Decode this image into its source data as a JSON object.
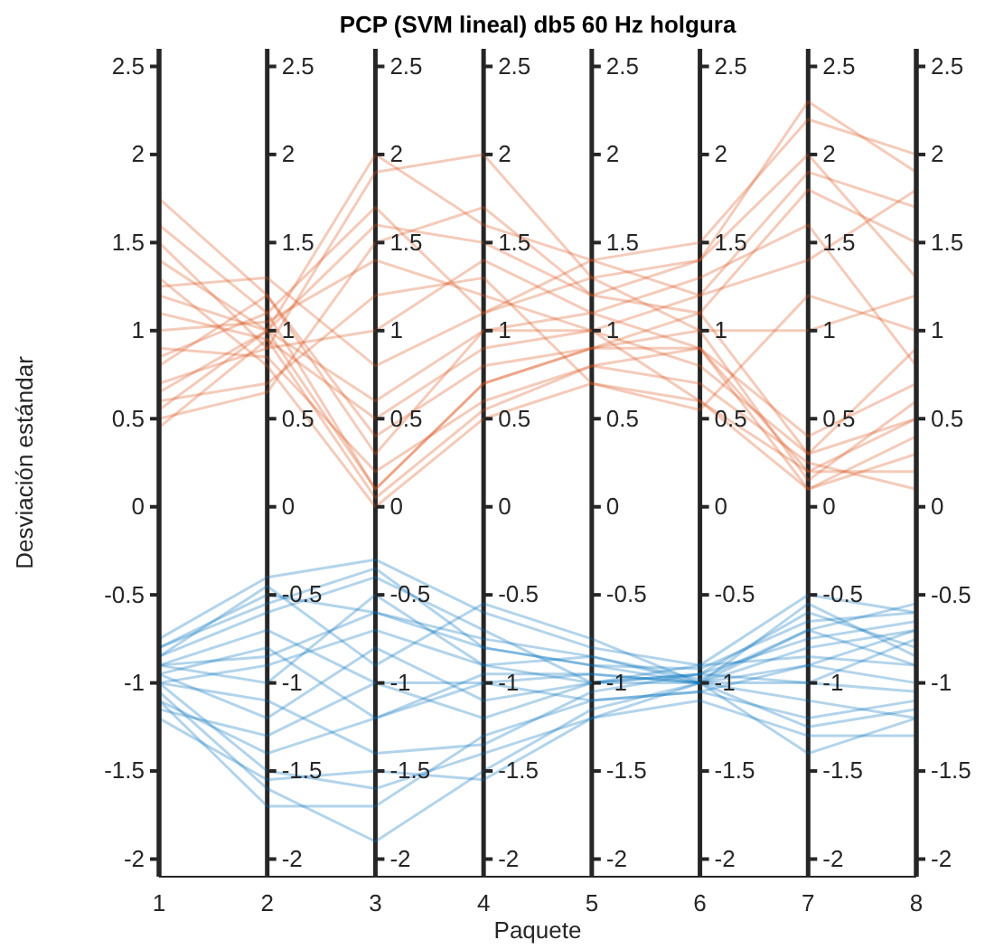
{
  "chart_data": {
    "type": "line",
    "title": "PCP (SVM lineal) db5 60 Hz holgura",
    "xlabel": "Paquete",
    "ylabel": "Desviación estándar",
    "x": [
      1,
      2,
      3,
      4,
      5,
      6,
      7,
      8
    ],
    "xlim": [
      1,
      8
    ],
    "xticks": [
      1,
      2,
      3,
      4,
      5,
      6,
      7,
      8
    ],
    "ylim": [
      -2.1,
      2.6
    ],
    "yticks": [
      -2,
      -1.5,
      -1,
      -0.5,
      0,
      0.5,
      1,
      1.5,
      2,
      2.5
    ],
    "grid": "x",
    "y2lim": [
      -2.1,
      2.6
    ],
    "y2ticks": [
      -2,
      -1.5,
      -1,
      -0.5,
      0,
      0.5,
      1,
      1.5,
      2,
      2.5
    ],
    "annotations": [
      "-2",
      "-1.5",
      "-1",
      "-0.5",
      "0",
      "0.5",
      "1",
      "1.5",
      "2",
      "2.5",
      "-2",
      "-1.5",
      "-1",
      "-0.5",
      "0",
      "0.5",
      "1",
      "1.5",
      "2",
      "2.5",
      "-2",
      "-1.5",
      "-1",
      "-0.5",
      "0",
      "0.5",
      "1",
      "1.5",
      "2",
      "2.5",
      "-2",
      "-1.5",
      "-1",
      "-0.5",
      "0",
      "0.5",
      "1",
      "1.5",
      "2",
      "2.5",
      "-2",
      "-1.5",
      "-1",
      "-0.5",
      "0",
      "0.5",
      "1",
      "1.5",
      "2",
      "2.5",
      "-2",
      "-1.5",
      "-1",
      "-0.5",
      "0",
      "0.5",
      "1",
      "1.5",
      "2",
      "2.5"
    ],
    "series": [
      {
        "color": "#d95319",
        "values": [
          1.75,
          1.2,
          0.3,
          1.0,
          1.1,
          0.9,
          0.2,
          0.5
        ]
      },
      {
        "color": "#d95319",
        "values": [
          1.6,
          1.1,
          0.1,
          0.7,
          0.9,
          1.0,
          0.15,
          0.6
        ]
      },
      {
        "color": "#d95319",
        "values": [
          1.5,
          0.9,
          1.9,
          2.0,
          1.3,
          1.4,
          2.3,
          1.9
        ]
      },
      {
        "color": "#d95319",
        "values": [
          1.4,
          1.0,
          1.6,
          1.5,
          1.2,
          1.1,
          1.8,
          1.5
        ]
      },
      {
        "color": "#d95319",
        "values": [
          1.3,
          0.8,
          0.0,
          0.5,
          0.7,
          0.6,
          0.1,
          0.3
        ]
      },
      {
        "color": "#d95319",
        "values": [
          1.2,
          1.0,
          2.0,
          1.6,
          1.4,
          1.5,
          2.2,
          2.0
        ]
      },
      {
        "color": "#d95319",
        "values": [
          1.1,
          0.95,
          0.5,
          0.9,
          1.0,
          0.8,
          0.3,
          0.9
        ]
      },
      {
        "color": "#d95319",
        "values": [
          1.0,
          1.05,
          1.4,
          1.2,
          1.0,
          1.2,
          1.9,
          1.7
        ]
      },
      {
        "color": "#d95319",
        "values": [
          0.9,
          0.85,
          0.2,
          0.6,
          0.8,
          0.7,
          0.25,
          0.1
        ]
      },
      {
        "color": "#d95319",
        "values": [
          0.85,
          1.1,
          1.7,
          1.1,
          1.3,
          1.0,
          1.0,
          1.2
        ]
      },
      {
        "color": "#d95319",
        "values": [
          0.8,
          1.2,
          0.4,
          0.8,
          0.9,
          0.9,
          0.1,
          0.4
        ]
      },
      {
        "color": "#d95319",
        "values": [
          0.7,
          0.9,
          1.0,
          1.4,
          1.1,
          1.3,
          1.6,
          0.8
        ]
      },
      {
        "color": "#d95319",
        "values": [
          0.65,
          1.0,
          0.6,
          1.0,
          1.0,
          0.6,
          0.2,
          0.2
        ]
      },
      {
        "color": "#d95319",
        "values": [
          0.6,
          0.7,
          1.2,
          1.3,
          0.7,
          0.55,
          1.2,
          1.0
        ]
      },
      {
        "color": "#d95319",
        "values": [
          0.55,
          1.0,
          0.1,
          0.7,
          0.9,
          1.1,
          0.3,
          0.5
        ]
      },
      {
        "color": "#d95319",
        "values": [
          0.5,
          0.65,
          1.5,
          1.7,
          1.2,
          1.4,
          2.0,
          1.3
        ]
      },
      {
        "color": "#d95319",
        "values": [
          0.45,
          0.95,
          0.05,
          0.55,
          0.8,
          0.9,
          0.4,
          0.7
        ]
      },
      {
        "color": "#d95319",
        "values": [
          1.25,
          1.3,
          0.8,
          1.1,
          1.4,
          1.2,
          1.4,
          1.8
        ]
      },
      {
        "color": "#0072bd",
        "values": [
          -0.75,
          -0.4,
          -0.3,
          -0.6,
          -0.8,
          -0.9,
          -0.5,
          -0.6
        ]
      },
      {
        "color": "#0072bd",
        "values": [
          -0.8,
          -0.5,
          -0.6,
          -0.8,
          -0.9,
          -1.0,
          -0.7,
          -0.55
        ]
      },
      {
        "color": "#0072bd",
        "values": [
          -0.85,
          -0.6,
          -0.4,
          -0.7,
          -1.0,
          -0.95,
          -0.6,
          -0.8
        ]
      },
      {
        "color": "#0072bd",
        "values": [
          -0.9,
          -1.0,
          -0.5,
          -0.9,
          -0.85,
          -1.0,
          -0.8,
          -0.7
        ]
      },
      {
        "color": "#0072bd",
        "values": [
          -0.9,
          -0.7,
          -1.0,
          -1.0,
          -1.1,
          -1.05,
          -0.9,
          -1.0
        ]
      },
      {
        "color": "#0072bd",
        "values": [
          -0.95,
          -1.2,
          -0.8,
          -1.1,
          -1.0,
          -1.0,
          -1.1,
          -1.2
        ]
      },
      {
        "color": "#0072bd",
        "values": [
          -1.0,
          -1.5,
          -1.6,
          -1.4,
          -1.2,
          -1.1,
          -1.3,
          -1.3
        ]
      },
      {
        "color": "#0072bd",
        "values": [
          -1.0,
          -0.9,
          -0.7,
          -0.9,
          -1.0,
          -0.95,
          -0.75,
          -0.65
        ]
      },
      {
        "color": "#0072bd",
        "values": [
          -1.05,
          -1.6,
          -1.9,
          -1.5,
          -1.15,
          -1.0,
          -1.4,
          -1.2
        ]
      },
      {
        "color": "#0072bd",
        "values": [
          -1.1,
          -1.7,
          -1.7,
          -1.3,
          -1.1,
          -1.05,
          -1.2,
          -1.1
        ]
      },
      {
        "color": "#0072bd",
        "values": [
          -1.15,
          -1.3,
          -1.0,
          -1.2,
          -1.0,
          -0.9,
          -0.85,
          -0.9
        ]
      },
      {
        "color": "#0072bd",
        "values": [
          -1.2,
          -1.55,
          -1.5,
          -1.55,
          -1.2,
          -1.0,
          -1.0,
          -0.75
        ]
      },
      {
        "color": "#0072bd",
        "values": [
          -0.85,
          -0.45,
          -0.9,
          -0.55,
          -0.75,
          -1.0,
          -0.55,
          -0.85
        ]
      },
      {
        "color": "#0072bd",
        "values": [
          -0.95,
          -0.8,
          -1.2,
          -1.0,
          -0.95,
          -1.0,
          -0.9,
          -0.7
        ]
      },
      {
        "color": "#0072bd",
        "values": [
          -1.0,
          -1.1,
          -1.4,
          -1.35,
          -1.05,
          -0.95,
          -1.0,
          -1.05
        ]
      },
      {
        "color": "#0072bd",
        "values": [
          -0.8,
          -0.55,
          -0.35,
          -0.8,
          -0.9,
          -0.92,
          -0.65,
          -0.6
        ]
      },
      {
        "color": "#0072bd",
        "values": [
          -1.1,
          -1.4,
          -1.2,
          -0.95,
          -0.95,
          -1.0,
          -1.25,
          -1.15
        ]
      },
      {
        "color": "#0072bd",
        "values": [
          -0.9,
          -0.85,
          -0.6,
          -0.75,
          -0.85,
          -0.98,
          -0.7,
          -0.9
        ]
      }
    ]
  }
}
